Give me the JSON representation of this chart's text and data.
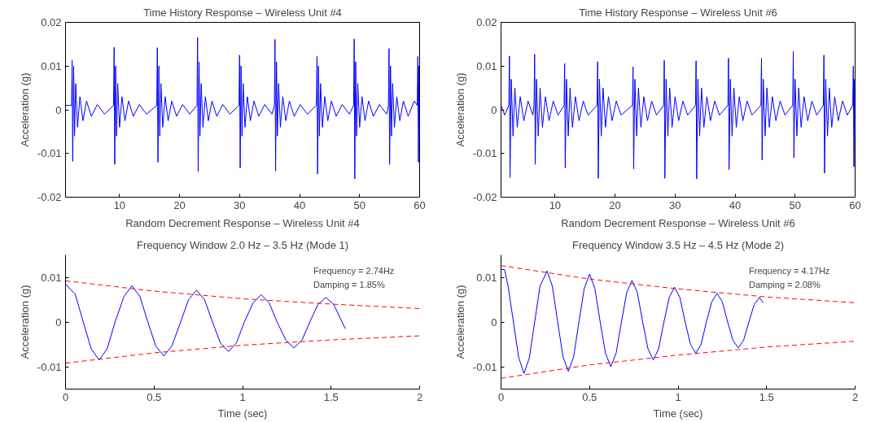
{
  "chart_data": [
    {
      "type": "line",
      "title": "Time History Response – Wireless Unit #4",
      "ylabel": "Acceleration (g)",
      "xlim": [
        1,
        60
      ],
      "ylim": [
        -0.02,
        0.02
      ],
      "xticks": [
        10,
        20,
        30,
        40,
        50,
        60
      ],
      "yticks": [
        -0.02,
        -0.01,
        0,
        0.01,
        0.02
      ],
      "grid": false,
      "line_style": "solid",
      "series": [
        {
          "color": "#0000ff",
          "x": [
            1.0,
            2.0,
            2.1,
            2.2,
            2.35,
            2.5,
            2.7,
            3.0,
            3.4,
            3.9,
            4.5,
            5.3,
            6.3,
            7.5,
            9.0,
            9.1,
            9.2,
            9.35,
            9.5,
            9.7,
            10.0,
            10.4,
            10.9,
            11.5,
            12.3,
            13.3,
            14.5,
            16.2,
            16.3,
            16.4,
            16.55,
            16.7,
            16.9,
            17.2,
            17.6,
            18.1,
            18.7,
            19.5,
            20.5,
            21.7,
            22.9,
            23.0,
            23.1,
            23.25,
            23.4,
            23.6,
            23.9,
            24.3,
            24.8,
            25.4,
            26.2,
            27.2,
            28.4,
            29.9,
            30.0,
            30.1,
            30.25,
            30.4,
            30.6,
            30.9,
            31.3,
            31.8,
            32.4,
            33.2,
            34.2,
            35.4,
            35.8,
            35.9,
            36.0,
            36.15,
            36.3,
            36.5,
            36.8,
            37.2,
            37.7,
            38.3,
            39.1,
            40.1,
            41.3,
            42.8,
            42.9,
            43.0,
            43.15,
            43.3,
            43.5,
            43.8,
            44.2,
            44.7,
            45.3,
            46.1,
            47.1,
            48.3,
            49.0,
            49.1,
            49.2,
            49.35,
            49.5,
            49.7,
            50.0,
            50.4,
            50.9,
            51.5,
            52.3,
            53.3,
            54.5,
            54.8,
            54.9,
            55.0,
            55.15,
            55.3,
            55.5,
            55.8,
            56.2,
            56.7,
            57.3,
            58.1,
            59.1,
            59.6,
            59.7,
            59.8,
            59.9,
            60.0
          ],
          "values": [
            0.001,
            0.001,
            0.0113,
            -0.0118,
            0.01,
            -0.006,
            0.006,
            -0.004,
            0.003,
            -0.0025,
            0.002,
            -0.0015,
            0.0012,
            -0.001,
            0.001,
            0.0143,
            -0.0125,
            0.01,
            -0.006,
            0.006,
            -0.004,
            0.003,
            -0.0025,
            0.002,
            -0.0015,
            0.0012,
            -0.001,
            0.001,
            0.0142,
            -0.012,
            0.01,
            -0.006,
            0.006,
            -0.004,
            0.003,
            -0.0025,
            0.002,
            -0.0015,
            0.0012,
            -0.001,
            0.001,
            0.0165,
            -0.0141,
            0.011,
            -0.006,
            0.006,
            -0.004,
            0.003,
            -0.0025,
            0.002,
            -0.0015,
            0.0012,
            -0.001,
            0.001,
            0.0125,
            -0.0133,
            0.01,
            -0.006,
            0.006,
            -0.004,
            0.003,
            -0.0025,
            0.002,
            -0.0015,
            0.0012,
            -0.001,
            0.001,
            0.0161,
            -0.014,
            0.011,
            -0.006,
            0.006,
            -0.004,
            0.003,
            -0.0025,
            0.002,
            -0.0015,
            0.0012,
            -0.001,
            0.001,
            0.0122,
            -0.0147,
            0.01,
            -0.006,
            0.006,
            -0.004,
            0.003,
            -0.0025,
            0.002,
            -0.0015,
            0.0012,
            -0.001,
            0.001,
            0.0162,
            -0.0158,
            0.011,
            -0.006,
            0.006,
            -0.004,
            0.003,
            -0.0025,
            0.002,
            -0.0015,
            0.0012,
            -0.001,
            0.001,
            0.014,
            -0.0125,
            0.01,
            -0.006,
            0.006,
            -0.004,
            0.003,
            -0.0025,
            0.002,
            -0.0015,
            0.002,
            0.001,
            0.0122,
            -0.012,
            0.01,
            -0.007
          ]
        }
      ]
    },
    {
      "type": "line",
      "title": "Time History Response – Wireless Unit #6",
      "ylabel": "Acceleration (g)",
      "xlim": [
        1,
        60
      ],
      "ylim": [
        -0.02,
        0.02
      ],
      "xticks": [
        10,
        20,
        30,
        40,
        50,
        60
      ],
      "yticks": [
        -0.02,
        -0.01,
        0,
        0.01,
        0.02
      ],
      "grid": false,
      "line_style": "solid",
      "series": [
        {
          "color": "#0000ff",
          "x": [
            1.0,
            1.6,
            2.3,
            2.4,
            2.5,
            2.7,
            3.0,
            3.3,
            3.7,
            4.2,
            4.8,
            5.5,
            6.3,
            6.5,
            6.6,
            6.7,
            6.9,
            7.2,
            7.5,
            7.9,
            8.4,
            9.0,
            9.7,
            10.5,
            11.5,
            11.6,
            11.7,
            11.9,
            12.2,
            12.5,
            12.9,
            13.4,
            14.0,
            14.7,
            15.5,
            17.0,
            17.1,
            17.2,
            17.4,
            17.7,
            18.0,
            18.4,
            18.9,
            19.5,
            20.2,
            21.0,
            22.9,
            23.0,
            23.1,
            23.3,
            23.6,
            23.9,
            24.3,
            24.8,
            25.4,
            26.1,
            26.9,
            28.1,
            28.2,
            28.3,
            28.5,
            28.8,
            29.1,
            29.5,
            30.0,
            30.6,
            31.3,
            32.1,
            33.4,
            33.5,
            33.6,
            33.8,
            34.1,
            34.4,
            34.8,
            35.3,
            35.9,
            36.6,
            37.4,
            38.8,
            38.9,
            39.0,
            39.2,
            39.5,
            39.8,
            40.2,
            40.7,
            41.3,
            42.0,
            42.8,
            44.3,
            44.4,
            44.5,
            44.7,
            45.0,
            45.3,
            45.7,
            46.2,
            46.8,
            47.5,
            48.3,
            49.6,
            49.7,
            49.8,
            50.0,
            50.3,
            50.6,
            51.0,
            51.5,
            52.1,
            52.8,
            53.6,
            54.7,
            54.8,
            54.9,
            55.1,
            55.4,
            55.7,
            56.1,
            56.6,
            57.2,
            57.9,
            58.7,
            59.6,
            59.7,
            59.8,
            59.9,
            60.0
          ],
          "values": [
            0.001,
            -0.0012,
            0.001,
            0.0123,
            -0.0155,
            0.007,
            -0.006,
            0.005,
            -0.004,
            0.003,
            -0.0025,
            0.002,
            -0.0012,
            0.001,
            0.0127,
            -0.0125,
            0.007,
            -0.006,
            0.005,
            -0.004,
            0.003,
            -0.0025,
            0.002,
            -0.0012,
            0.001,
            0.0106,
            -0.0133,
            0.007,
            -0.006,
            0.005,
            -0.004,
            0.003,
            -0.0025,
            0.002,
            -0.0012,
            0.001,
            0.011,
            -0.0157,
            0.007,
            -0.006,
            0.005,
            -0.004,
            0.003,
            -0.0025,
            0.002,
            -0.0012,
            0.001,
            0.0098,
            -0.0135,
            0.007,
            -0.006,
            0.005,
            -0.004,
            0.003,
            -0.0025,
            0.002,
            -0.0012,
            0.001,
            0.0113,
            -0.0157,
            0.007,
            -0.006,
            0.005,
            -0.004,
            0.003,
            -0.0025,
            0.002,
            -0.0012,
            0.001,
            0.0112,
            -0.0158,
            0.007,
            -0.006,
            0.005,
            -0.004,
            0.003,
            -0.0025,
            0.002,
            -0.0012,
            0.001,
            0.0118,
            -0.0137,
            0.007,
            -0.006,
            0.005,
            -0.004,
            0.003,
            -0.0025,
            0.002,
            -0.0012,
            0.001,
            0.0118,
            -0.0115,
            0.007,
            -0.006,
            0.005,
            -0.004,
            0.003,
            -0.0025,
            0.002,
            -0.0012,
            0.001,
            0.0133,
            -0.011,
            0.007,
            -0.006,
            0.005,
            -0.004,
            0.003,
            -0.0025,
            0.002,
            -0.0012,
            0.001,
            0.0125,
            -0.0145,
            0.007,
            -0.006,
            0.005,
            -0.004,
            0.003,
            -0.0025,
            0.002,
            -0.0012,
            0.001,
            0.01,
            -0.013,
            0.007,
            -0.006
          ]
        }
      ]
    },
    {
      "type": "line",
      "title": "Random Decrement Response – Wireless Unit #4",
      "subtitle": "Frequency Window 2.0 Hz – 3.5 Hz (Mode 1)",
      "xlabel": "Time (sec)",
      "ylabel": "Acceleration (g)",
      "xlim": [
        0,
        2
      ],
      "ylim": [
        -0.015,
        0.015
      ],
      "xticks": [
        0,
        0.5,
        1,
        1.5,
        2
      ],
      "yticks": [
        -0.01,
        0,
        0.01
      ],
      "grid": false,
      "annotations": [
        "Frequency = 2.74Hz",
        "Damping = 1.85%"
      ],
      "series": [
        {
          "color": "#0000ff",
          "line_style": "solid",
          "x": [
            0.0,
            0.055,
            0.1,
            0.145,
            0.19,
            0.235,
            0.28,
            0.33,
            0.375,
            0.42,
            0.465,
            0.51,
            0.555,
            0.6,
            0.65,
            0.695,
            0.74,
            0.785,
            0.83,
            0.875,
            0.92,
            0.965,
            1.01,
            1.06,
            1.105,
            1.15,
            1.195,
            1.245,
            1.29,
            1.335,
            1.38,
            1.425,
            1.47,
            1.515,
            1.58
          ],
          "values": [
            0.0085,
            0.0062,
            0.0,
            -0.006,
            -0.0085,
            -0.006,
            0.0,
            0.0057,
            0.0081,
            0.0057,
            0.0,
            -0.0054,
            -0.0076,
            -0.0054,
            0.0,
            0.005,
            0.0071,
            0.005,
            0.0,
            -0.0047,
            -0.0066,
            -0.0047,
            0.0,
            0.0043,
            0.0061,
            0.0043,
            0.0,
            -0.0041,
            -0.0058,
            -0.0041,
            0.0,
            0.0039,
            0.0055,
            0.0039,
            -0.0015
          ]
        },
        {
          "color": "#ff0000",
          "line_style": "dashed",
          "x": [
            0,
            0.5,
            1,
            1.5,
            2
          ],
          "values": [
            0.0092,
            0.0069,
            0.0052,
            0.004,
            0.003
          ]
        },
        {
          "color": "#ff0000",
          "line_style": "dashed",
          "x": [
            0,
            0.5,
            1,
            1.5,
            2
          ],
          "values": [
            -0.0092,
            -0.0069,
            -0.0052,
            -0.004,
            -0.0031
          ]
        }
      ]
    },
    {
      "type": "line",
      "title": "Random Decrement Response – Wireless Unit #6",
      "subtitle": "Frequency Window 3.5 Hz – 4.5 Hz (Mode 2)",
      "xlabel": "Time (sec)",
      "ylabel": "Acceleration (g)",
      "xlim": [
        0,
        2
      ],
      "ylim": [
        -0.015,
        0.015
      ],
      "xticks": [
        0,
        0.5,
        1,
        1.5,
        2
      ],
      "yticks": [
        -0.01,
        0,
        0.01
      ],
      "grid": false,
      "annotations": [
        "Frequency = 4.17Hz",
        "Damping = 2.08%"
      ],
      "series": [
        {
          "color": "#0000ff",
          "line_style": "solid",
          "x": [
            0.0,
            0.02,
            0.04,
            0.07,
            0.1,
            0.13,
            0.16,
            0.19,
            0.22,
            0.26,
            0.29,
            0.32,
            0.35,
            0.38,
            0.41,
            0.44,
            0.47,
            0.5,
            0.53,
            0.56,
            0.59,
            0.62,
            0.65,
            0.68,
            0.71,
            0.74,
            0.77,
            0.8,
            0.83,
            0.86,
            0.89,
            0.92,
            0.95,
            0.98,
            1.01,
            1.04,
            1.07,
            1.1,
            1.13,
            1.16,
            1.19,
            1.22,
            1.25,
            1.28,
            1.31,
            1.34,
            1.37,
            1.4,
            1.43,
            1.46,
            1.48
          ],
          "values": [
            0.0118,
            0.0117,
            0.008,
            0.0,
            -0.008,
            -0.0115,
            -0.008,
            0.0,
            0.008,
            0.0114,
            0.008,
            0.0,
            -0.0078,
            -0.011,
            -0.0078,
            0.0,
            0.0075,
            0.0107,
            0.0075,
            0.0,
            -0.007,
            -0.01,
            -0.007,
            0.0,
            0.0066,
            0.0093,
            0.0066,
            0.0,
            -0.006,
            -0.0085,
            -0.006,
            0.0,
            0.0055,
            0.0078,
            0.0055,
            0.0,
            -0.005,
            -0.007,
            -0.005,
            0.0,
            0.0045,
            0.0064,
            0.0045,
            0.0,
            -0.0041,
            -0.0058,
            -0.0041,
            0.0,
            0.0039,
            0.0055,
            0.0043
          ]
        },
        {
          "color": "#ff0000",
          "line_style": "dashed",
          "x": [
            0,
            0.5,
            1,
            1.5,
            2
          ],
          "values": [
            0.0126,
            0.0096,
            0.0074,
            0.0056,
            0.0043
          ]
        },
        {
          "color": "#ff0000",
          "line_style": "dashed",
          "x": [
            0,
            0.5,
            1,
            1.5,
            2
          ],
          "values": [
            -0.0126,
            -0.0096,
            -0.0074,
            -0.0056,
            -0.0043
          ]
        }
      ]
    }
  ]
}
